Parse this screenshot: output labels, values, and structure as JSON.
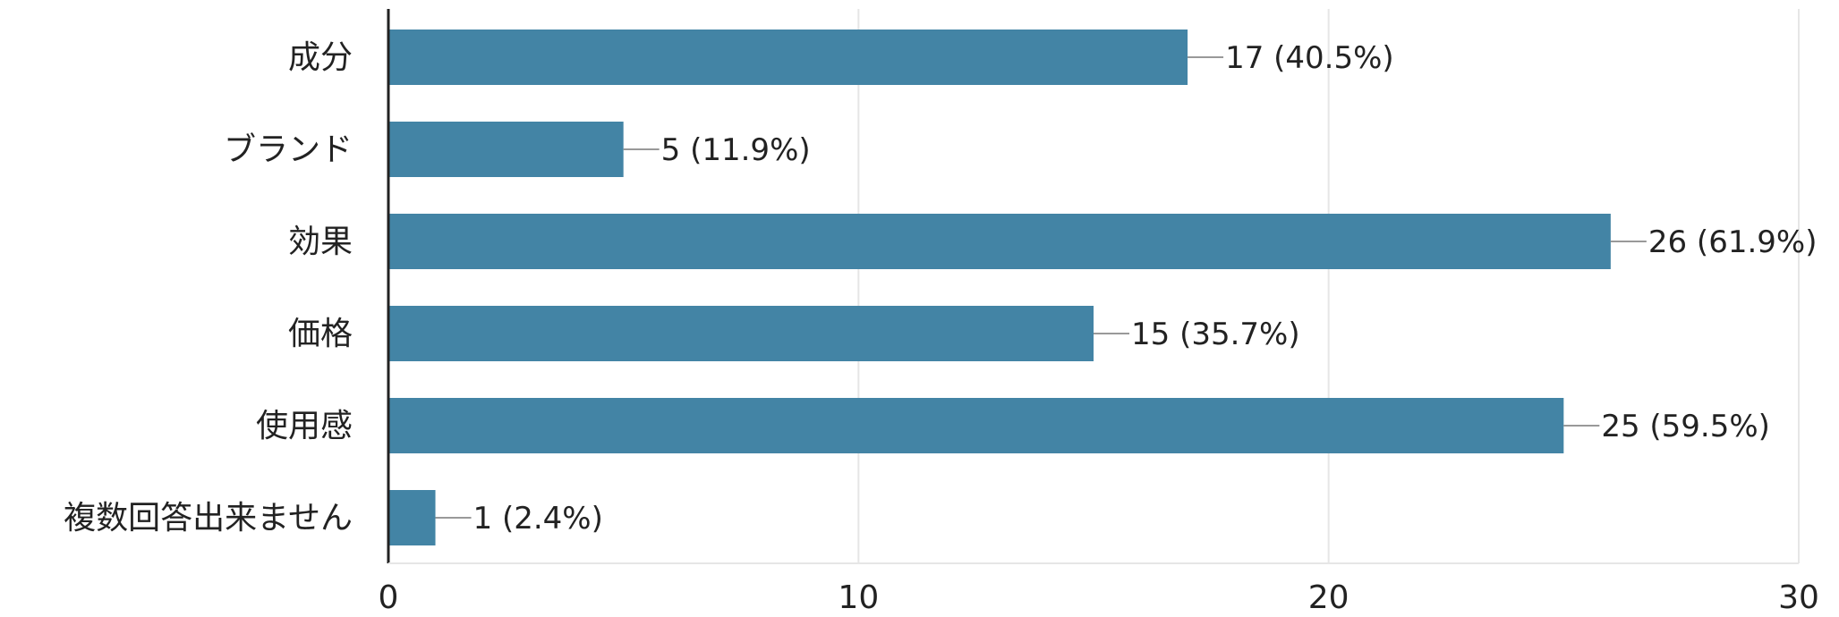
{
  "chart_data": {
    "type": "bar",
    "orientation": "horizontal",
    "categories": [
      "成分",
      "ブランド",
      "効果",
      "価格",
      "使用感",
      "複数回答出来ません"
    ],
    "values": [
      17,
      5,
      26,
      15,
      25,
      1
    ],
    "value_labels": [
      "17 (40.5%)",
      "5 (11.9%)",
      "26 (61.9%)",
      "15 (35.7%)",
      "25 (59.5%)",
      "1 (2.4%)"
    ],
    "x_ticks": [
      "0",
      "10",
      "20",
      "30"
    ],
    "xlim": [
      0,
      30
    ],
    "grid": true,
    "legend": "none",
    "bar_color": "#4384a5",
    "grid_color": "#e6e6e6",
    "axis_color": "#222222",
    "leader_color": "#999999"
  }
}
